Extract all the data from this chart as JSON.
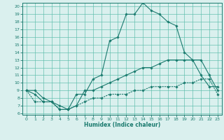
{
  "xlabel": "Humidex (Indice chaleur)",
  "x": [
    0,
    1,
    2,
    3,
    4,
    5,
    6,
    7,
    8,
    9,
    10,
    11,
    12,
    13,
    14,
    15,
    16,
    17,
    18,
    19,
    20,
    21,
    22,
    23
  ],
  "line1_y": [
    9.0,
    9.0,
    8.0,
    7.5,
    7.0,
    6.5,
    8.5,
    8.5,
    10.5,
    11.0,
    15.5,
    16.0,
    19.0,
    19.0,
    20.5,
    19.5,
    19.0,
    18.0,
    17.5,
    14.0,
    13.0,
    11.0,
    9.5,
    9.5
  ],
  "line2_y": [
    9.0,
    8.5,
    7.5,
    7.5,
    6.5,
    6.5,
    7.0,
    9.0,
    9.0,
    9.5,
    10.0,
    10.5,
    11.0,
    11.5,
    12.0,
    12.0,
    12.5,
    13.0,
    13.0,
    13.0,
    13.0,
    13.0,
    11.0,
    9.0
  ],
  "line3_y": [
    9.0,
    7.5,
    7.5,
    7.5,
    6.5,
    6.5,
    7.0,
    7.5,
    8.0,
    8.0,
    8.5,
    8.5,
    8.5,
    9.0,
    9.0,
    9.5,
    9.5,
    9.5,
    9.5,
    10.0,
    10.0,
    10.5,
    10.5,
    8.5
  ],
  "line_color": "#1a7a6e",
  "bg_color": "#daf0ee",
  "grid_color": "#5abcab",
  "ylim": [
    6,
    20
  ],
  "xlim": [
    0,
    23
  ],
  "yticks": [
    6,
    7,
    8,
    9,
    10,
    11,
    12,
    13,
    14,
    15,
    16,
    17,
    18,
    19,
    20
  ],
  "xticks": [
    0,
    1,
    2,
    3,
    4,
    5,
    6,
    7,
    8,
    9,
    10,
    11,
    12,
    13,
    14,
    15,
    16,
    17,
    18,
    19,
    20,
    21,
    22,
    23
  ]
}
